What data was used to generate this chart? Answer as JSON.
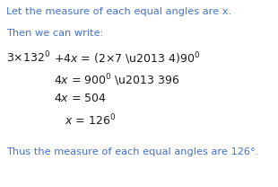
{
  "background_color": "#ffffff",
  "text_color_blue": "#4472C4",
  "line1": "Let the measure of each equal angles are x.",
  "line2": "Then we can write:",
  "conclusion": "Thus the measure of each equal angles are 126°.",
  "fig_width": 3.1,
  "fig_height": 2.08,
  "dpi": 100,
  "fs_small": 8.2,
  "fs_math": 9.0,
  "fs_sup": 6.0
}
